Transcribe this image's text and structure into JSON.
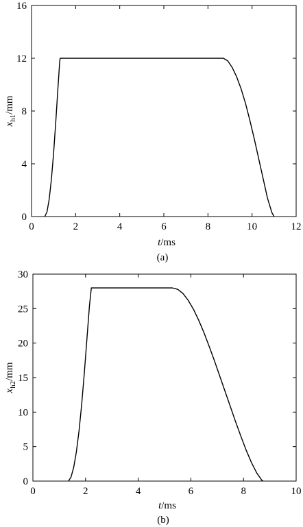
{
  "chart_data": [
    {
      "type": "line",
      "caption": "(a)",
      "xlabel": "t/ms",
      "ylabel": "xh1/mm",
      "xlabel_var": "t",
      "xlabel_unit": "/ms",
      "ylabel_var": "x",
      "ylabel_sub": "h1",
      "ylabel_unit": "/mm",
      "xlim": [
        0,
        12
      ],
      "ylim": [
        0,
        16
      ],
      "xticks": [
        0,
        2,
        4,
        6,
        8,
        10,
        12
      ],
      "yticks": [
        0,
        4,
        8,
        12,
        16
      ],
      "grid": false,
      "series": [
        {
          "x": [
            0.6,
            0.7,
            0.8,
            0.9,
            1.0,
            1.1,
            1.2,
            1.28,
            1.3,
            8.7,
            8.9,
            9.1,
            9.3,
            9.5,
            9.7,
            9.9,
            10.1,
            10.3,
            10.5,
            10.7,
            10.9,
            11.0
          ],
          "y": [
            0,
            0.35,
            1.3,
            2.8,
            4.8,
            7.2,
            9.8,
            11.8,
            12,
            12,
            11.8,
            11.3,
            10.6,
            9.7,
            8.6,
            7.3,
            5.9,
            4.4,
            2.9,
            1.4,
            0.3,
            0
          ]
        }
      ]
    },
    {
      "type": "line",
      "caption": "(b)",
      "xlabel": "t/ms",
      "ylabel": "xh2/mm",
      "xlabel_var": "t",
      "xlabel_unit": "/ms",
      "ylabel_var": "x",
      "ylabel_sub": "h2",
      "ylabel_unit": "/mm",
      "xlim": [
        0,
        10
      ],
      "ylim": [
        0,
        30
      ],
      "xticks": [
        0,
        2,
        4,
        6,
        8,
        10
      ],
      "yticks": [
        0,
        5,
        10,
        15,
        20,
        25,
        30
      ],
      "grid": false,
      "series": [
        {
          "x": [
            1.35,
            1.45,
            1.55,
            1.65,
            1.75,
            1.85,
            1.95,
            2.05,
            2.15,
            2.22,
            2.25,
            5.3,
            5.5,
            5.7,
            5.9,
            6.1,
            6.3,
            6.5,
            6.7,
            6.9,
            7.1,
            7.3,
            7.5,
            7.7,
            7.9,
            8.1,
            8.3,
            8.5,
            8.7,
            8.75
          ],
          "y": [
            0,
            0.6,
            2.0,
            4.2,
            7.2,
            11.0,
            15.5,
            20.5,
            25.5,
            28,
            28,
            28,
            27.8,
            27.2,
            26.2,
            24.9,
            23.3,
            21.5,
            19.5,
            17.4,
            15.2,
            13.0,
            10.8,
            8.6,
            6.5,
            4.5,
            2.7,
            1.2,
            0.1,
            0
          ]
        }
      ]
    }
  ]
}
